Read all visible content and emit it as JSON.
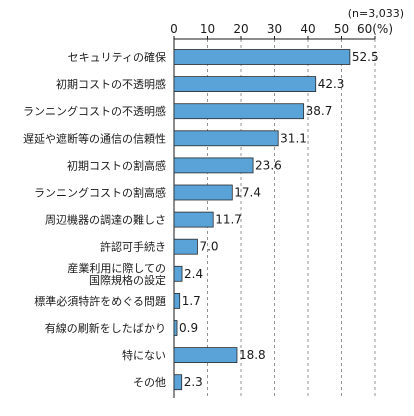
{
  "chart_data": {
    "type": "bar",
    "orientation": "horizontal",
    "title": "",
    "note": "(n=3,033)",
    "xlim": [
      0,
      60
    ],
    "xticks": [
      0,
      10,
      20,
      30,
      40,
      50,
      60
    ],
    "xtick_labels": [
      "0",
      "10",
      "20",
      "30",
      "40",
      "50",
      "60(%)"
    ],
    "grid": "dashed vertical",
    "bar_color": "#5aa3d8",
    "categories": [
      "セキュリティの確保",
      "初期コストの不透明感",
      "ランニングコストの不透明感",
      "遅延や遮断等の通信の信頼性",
      "初期コストの割高感",
      "ランニングコストの割高感",
      "周辺機器の調達の難しさ",
      "許認可手続き",
      "産業利用に際しての\n国際規格の設定",
      "標準必須特許をめぐる問題",
      "有線の刷新をしたばかり",
      "特にない",
      "その他"
    ],
    "values": [
      52.5,
      42.3,
      38.7,
      31.1,
      23.6,
      17.4,
      11.7,
      7.0,
      2.4,
      1.7,
      0.9,
      18.8,
      2.3
    ],
    "value_labels": [
      "52.5",
      "42.3",
      "38.7",
      "31.1",
      "23.6",
      "17.4",
      "11.7",
      "7.0",
      "2.4",
      "1.7",
      "0.9",
      "18.8",
      "2.3"
    ]
  }
}
